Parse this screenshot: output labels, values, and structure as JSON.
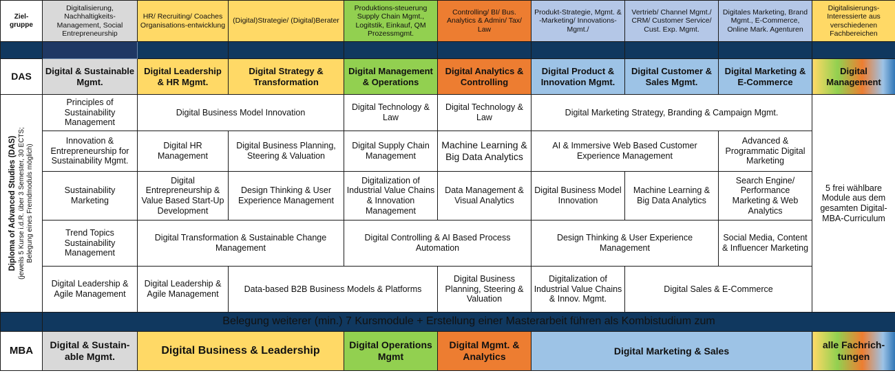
{
  "row_labels": {
    "zielgruppe": "Ziel-\ngruppe",
    "das": "DAS",
    "diploma_title": "Diploma of Advanced Studies (DAS)",
    "diploma_sub1": "(jeweils 5 Kurse i.d.R. über 3 Semester, 30 ECTS;",
    "diploma_sub2": "Belegung eines Fremdmoduls möglich)",
    "mba": "MBA"
  },
  "zielgruppe": [
    "Digitalisierung, Nachhaltigkeits-Management, Social Entrepreneurship",
    "HR/ Recruiting/ Coaches Organisations-entwicklung",
    "(Digital)Strategie/ (Digital)Berater",
    "Produktions-steuerung Supply Chain Mgmt., Logitstik, Einkauf, QM Prozessmgmt.",
    "Controlling/ BI/ Bus. Analytics & Admin/ Tax/ Law",
    "Produkt-Strategie, Mgmt. & -Marketing/ Innovations-Mgmt./",
    "Vertrieb/ Channel Mgmt./ CRM/ Customer Service/ Cust. Exp. Mgmt.",
    "Digitales Marketing, Brand Mgmt., E-Commerce, Online Mark. Agenturen",
    "Digitalisierungs-Interessierte aus verschiedenen Fachbereichen"
  ],
  "das": [
    "Digital & Sustainable Mgmt.",
    "Digital Leadership & HR Mgmt.",
    "Digital Strategy & Transformation",
    "Digital Management & Operations",
    "Digital Analytics & Controlling",
    "Digital Product & Innovation Mgmt.",
    "Digital Customer & Sales Mgmt.",
    "Digital Marketing & E-Commerce",
    "Digital Management"
  ],
  "modules": {
    "r1": {
      "c1": "Principles of Sustainability Management",
      "c23": "Digital Business Model Innovation",
      "c4": "Digital Technology & Law",
      "c5": "Digital Technology & Law",
      "c678": "Digital Marketing Strategy, Branding & Campaign Mgmt."
    },
    "r2": {
      "c1": "Innovation & Entrepreneurship for Sustainability Mgmt.",
      "c2": "Digital HR Management",
      "c3": "Digital Business Planning, Steering & Valuation",
      "c4": "Digital Supply Chain Management",
      "c5": "Machine Learning & Big Data Analytics",
      "c67": "AI & Immersive Web Based Customer Experience Management",
      "c8": "Advanced & Programmatic Digital Marketing"
    },
    "r3": {
      "c1": "Sustainability Marketing",
      "c2": "Digital Entrepreneurship & Value Based Start-Up Development",
      "c3": "Design Thinking & User Experience Management",
      "c4": "Digitalization of Industrial Value Chains & Innovation Management",
      "c5": "Data Management & Visual Analytics",
      "c6": "Digital Business Model Innovation",
      "c7": "Machine Learning & Big Data Analytics",
      "c8": "Search Engine/ Performance Marketing & Web Analytics"
    },
    "r4": {
      "c1": "Trend Topics Sustainability Management",
      "c23": "Digital Transformation & Sustainable Change Management",
      "c45": "Digital Controlling & AI Based Process Automation",
      "c67": "Design Thinking & User Experience Management",
      "c8": "Social Media, Content & Influencer Marketing"
    },
    "r5": {
      "c1": "Digital Leadership & Agile Management",
      "c2": "Digital Leadership & Agile Management",
      "c34": "Data-based B2B Business Models & Platforms",
      "c5": "Digital Business Planning, Steering & Valuation",
      "c6": "Digitalization of Industrial Value Chains & Innov. Mgmt.",
      "c78": "Digital Sales & E-Commerce"
    },
    "free": "5 frei wählbare Module aus dem gesamten Digital-MBA-Curriculum"
  },
  "banner": "Belegung weiterer (min.) 7 Kursmodule + Erstellung einer Masterarbeit führen als Kombistudium zum",
  "mba": [
    "Digital & Sustain-able Mgmt.",
    "Digital Business & Leadership",
    "Digital Operations Mgmt",
    "Digital Mgmt. & Analytics",
    "Digital Marketing & Sales",
    "alle Fachrich-tungen"
  ],
  "colors": {
    "grey": "#d9d9d9",
    "yellow": "#ffd966",
    "green": "#92d050",
    "orange": "#ed7d31",
    "blue": "#9dc3e6",
    "navy": "#10385f"
  }
}
